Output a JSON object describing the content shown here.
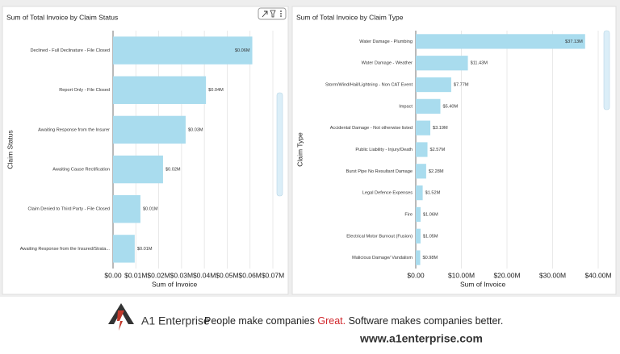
{
  "chart_data": [
    {
      "type": "hbar",
      "title": "Sum of Total Invoice by Claim Status",
      "x_label": "Sum of Invoice",
      "y_label": "Claim Status",
      "color": "#a9dcee",
      "grid": true,
      "categories": [
        "Declined - Full Declinature - File Closed",
        "Report Only - File Closed",
        "Awaiting Response from the Insurer",
        "Awaiting Cause Rectification",
        "Claim Denied to Third Party - File Closed",
        "Awaiting Response from the Insured/Strata..."
      ],
      "values": [
        0.061,
        0.0407,
        0.0318,
        0.0219,
        0.012,
        0.0095
      ],
      "value_labels": [
        "$0.06M",
        "$0.04M",
        "$0.03M",
        "$0.02M",
        "$0.01M",
        "$0.01M"
      ],
      "xlim": [
        0,
        0.07
      ],
      "xticks": [
        {
          "value": 0,
          "label": "$0.00"
        },
        {
          "value": 0.01,
          "label": "$0.01M"
        },
        {
          "value": 0.02,
          "label": "$0.02M"
        },
        {
          "value": 0.03,
          "label": "$0.03M"
        },
        {
          "value": 0.04,
          "label": "$0.04M"
        },
        {
          "value": 0.05,
          "label": "$0.05M"
        },
        {
          "value": 0.06,
          "label": "$0.06M"
        },
        {
          "value": 0.07,
          "label": "$0.07M"
        }
      ]
    },
    {
      "type": "hbar",
      "title": "Sum of Total Invoice by Claim Type",
      "x_label": "Sum of Invoice",
      "y_label": "Claim Type",
      "color": "#a9dcee",
      "grid": true,
      "categories": [
        "Water Damage - Plumbing",
        "Water Damage - Weather",
        "Storm/Wind/Hail/Lightning - Non CAT Event",
        "Impact",
        "Accidental Damage - Not otherwise listed",
        "Public Liability - Injury/Death",
        "Burst Pipe  No Resultant Damage",
        "Legal Defence Expenses",
        "Fire",
        "Electrical Motor Burnout (Fusion)",
        "Malicious Damage/ Vandalism"
      ],
      "values": [
        37.13,
        11.43,
        7.77,
        5.4,
        3.19,
        2.57,
        2.28,
        1.52,
        1.06,
        1.05,
        0.98
      ],
      "value_labels": [
        "$37.13M",
        "$11.43M",
        "$7.77M",
        "$5.40M",
        "$3.19M",
        "$2.57M",
        "$2.28M",
        "$1.52M",
        "$1.06M",
        "$1.05M",
        "$0.98M"
      ],
      "xlim": [
        0,
        40
      ],
      "xticks": [
        {
          "value": 0,
          "label": "$0.00"
        },
        {
          "value": 10,
          "label": "$10.00M"
        },
        {
          "value": 20,
          "label": "$20.00M"
        },
        {
          "value": 30,
          "label": "$30.00M"
        },
        {
          "value": 40,
          "label": "$40.00M"
        }
      ]
    }
  ],
  "footer": {
    "brand": "A1 Enterprise",
    "slogan_start": "People make companies ",
    "slogan_great": "Great.",
    "slogan_software": " Software",
    "slogan_end": " makes companies better.",
    "url": "www.a1enterprise.com"
  }
}
